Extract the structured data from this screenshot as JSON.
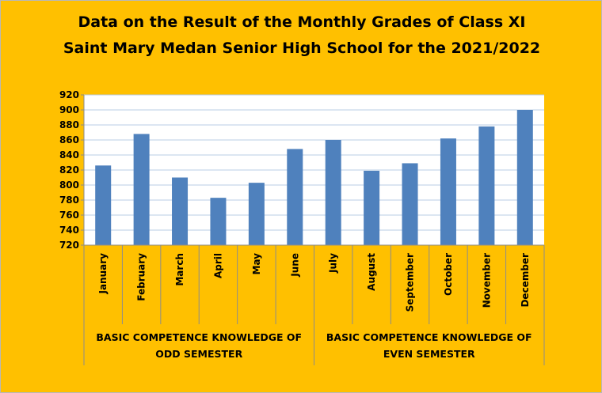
{
  "chart_data": {
    "type": "bar",
    "title_lines": [
      "Data on the Result of the Monthly Grades of Class XI",
      "Saint Mary Medan Senior High School for the 2021/2022"
    ],
    "categories": [
      "January",
      "February",
      "March",
      "April",
      "May",
      "June",
      "July",
      "August",
      "September",
      "October",
      "November",
      "December"
    ],
    "values": [
      826,
      868,
      810,
      783,
      803,
      848,
      860,
      819,
      829,
      862,
      878,
      900
    ],
    "ylim": [
      720,
      920
    ],
    "yticks": [
      720,
      740,
      760,
      780,
      800,
      820,
      840,
      860,
      880,
      900,
      920
    ],
    "groups": [
      {
        "lines": [
          "BASIC COMPETENCE KNOWLEDGE OF",
          "ODD SEMESTER"
        ],
        "start": 0,
        "end": 5
      },
      {
        "lines": [
          "BASIC COMPETENCE KNOWLEDGE OF",
          "EVEN SEMESTER"
        ],
        "start": 6,
        "end": 11
      }
    ],
    "grid": true,
    "colors": {
      "background": "#FFC000",
      "plot_area": "#FFFFFF",
      "bar": "#4F81BD",
      "gridline": "#B9CDE5"
    }
  }
}
